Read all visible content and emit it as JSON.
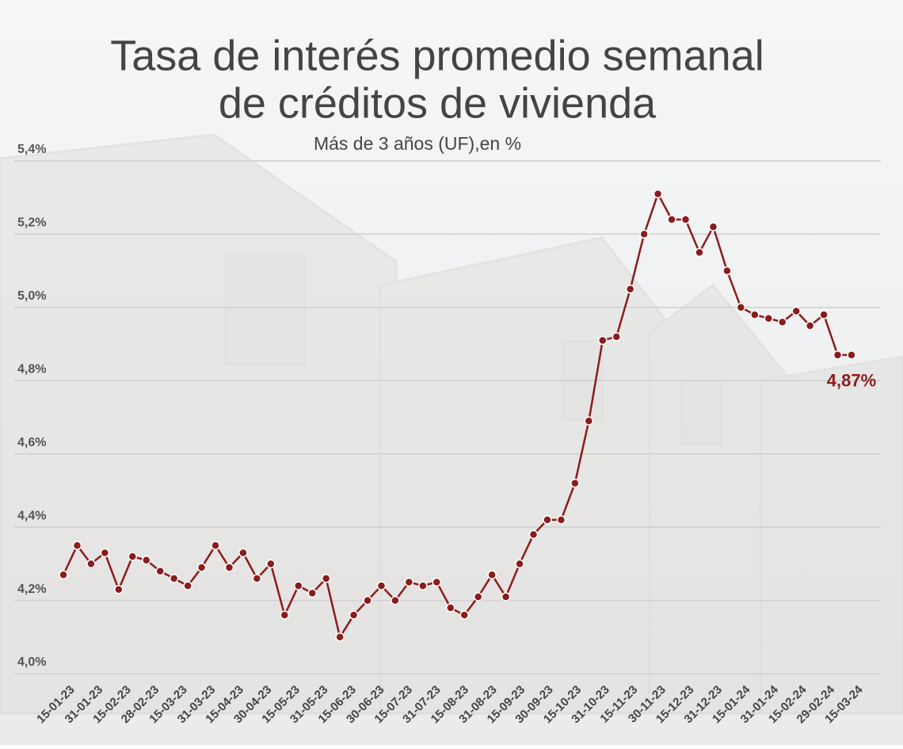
{
  "chart_data": {
    "type": "line",
    "title": [
      "Tasa de interés promedio semanal",
      "de créditos de vivienda"
    ],
    "subtitle": "Más de 3 años (UF),en %",
    "x_labels": [
      "15-01-23",
      "31-01-23",
      "15-02-23",
      "28-02-23",
      "15-03-23",
      "31-03-23",
      "15-04-23",
      "30-04-23",
      "15-05-23",
      "31-05-23",
      "15-06-23",
      "30-06-23",
      "15-07-23",
      "31-07-23",
      "15-08-23",
      "31-08-23",
      "15-09-23",
      "30-09-23",
      "15-10-23",
      "31-10-23",
      "15-11-23",
      "30-11-23",
      "15-12-23",
      "31-12-23",
      "15-01-24",
      "31-01-24",
      "15-02-24",
      "29-02-24",
      "15-03-24"
    ],
    "values": [
      4.27,
      4.35,
      4.3,
      4.33,
      4.23,
      4.32,
      4.31,
      4.28,
      4.26,
      4.24,
      4.29,
      4.35,
      4.29,
      4.33,
      4.26,
      4.3,
      4.16,
      4.24,
      4.22,
      4.26,
      4.1,
      4.16,
      4.2,
      4.24,
      4.2,
      4.25,
      4.24,
      4.25,
      4.18,
      4.16,
      4.21,
      4.27,
      4.21,
      4.3,
      4.38,
      4.42,
      4.42,
      4.52,
      4.69,
      4.91,
      4.92,
      5.05,
      5.2,
      5.31,
      5.24,
      5.24,
      5.15,
      5.22,
      5.1,
      5.0,
      4.98,
      4.97,
      4.96,
      4.99,
      4.95,
      4.98,
      4.87,
      4.87
    ],
    "value_labels": [
      null,
      null,
      null,
      null,
      null,
      null,
      null,
      null,
      null,
      null,
      null,
      null,
      null,
      null,
      null,
      null,
      null,
      null,
      null,
      null,
      null,
      null,
      null,
      null,
      null,
      null,
      null,
      null,
      null,
      null,
      null,
      null,
      null,
      null,
      null,
      null,
      null,
      null,
      null,
      null,
      null,
      null,
      null,
      null,
      null,
      null,
      null,
      null,
      null,
      null,
      null,
      null,
      null,
      null,
      null,
      null,
      null,
      "4,87%"
    ],
    "color": "#8b1c1c",
    "ylim": [
      4.0,
      5.4
    ],
    "yticks": [
      {
        "value": 4.0,
        "label": "4,0%"
      },
      {
        "value": 4.2,
        "label": "4,2%"
      },
      {
        "value": 4.4,
        "label": "4,4%"
      },
      {
        "value": 4.6,
        "label": "4,6%"
      },
      {
        "value": 4.8,
        "label": "4,8%"
      },
      {
        "value": 5.0,
        "label": "5,0%"
      },
      {
        "value": 5.2,
        "label": "5,2%"
      },
      {
        "value": 5.4,
        "label": "5,4%"
      }
    ],
    "grid": true
  }
}
